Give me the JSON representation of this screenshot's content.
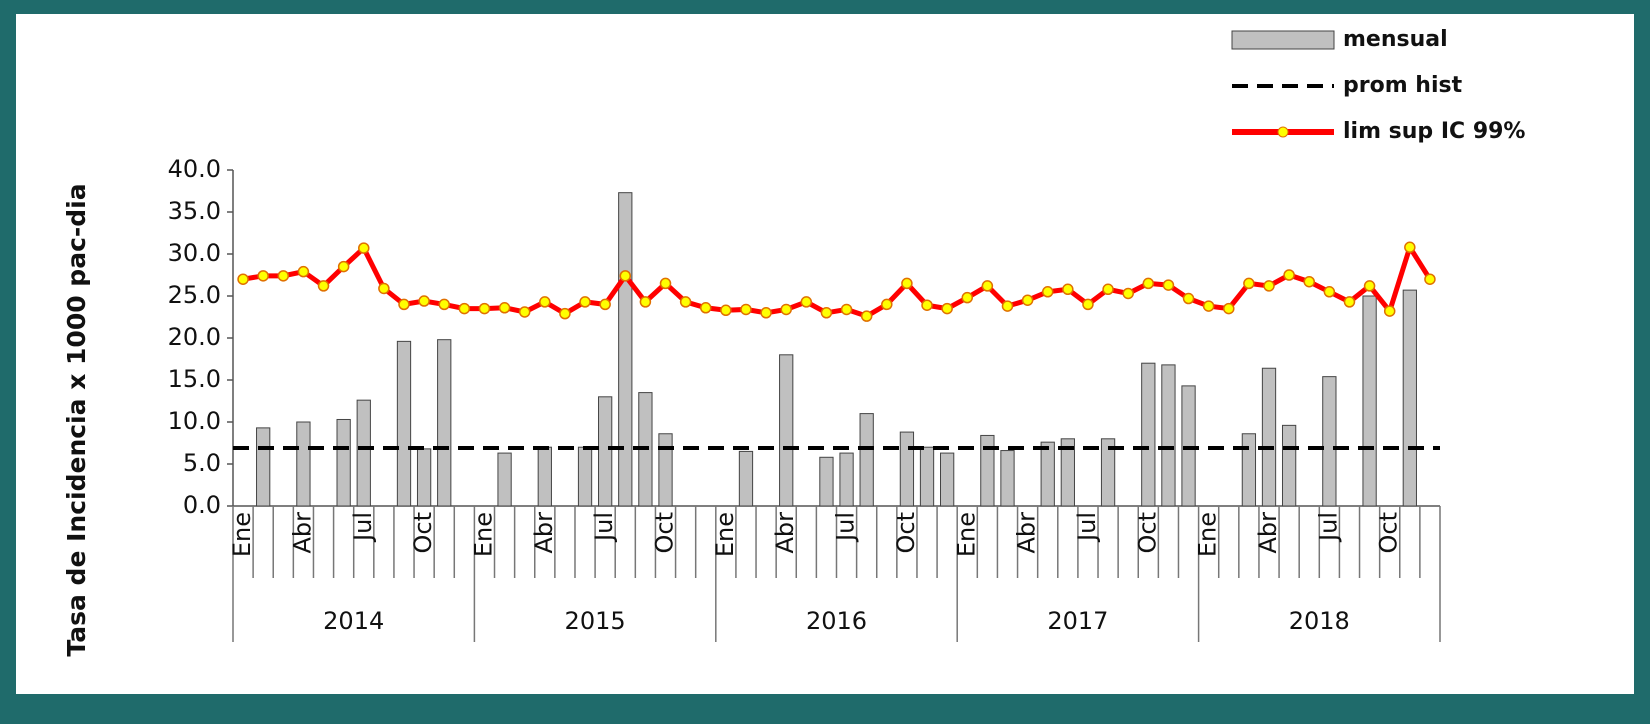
{
  "chart_data": {
    "type": "bar_line",
    "y_label": "Tasa de Incidencia x 1000 pac-dia",
    "categories": [
      "Ene",
      null,
      null,
      "Abr",
      null,
      null,
      "Jul",
      null,
      null,
      "Oct",
      null,
      null,
      "Ene",
      null,
      null,
      "Abr",
      null,
      null,
      "Jul",
      null,
      null,
      "Oct",
      null,
      null,
      "Ene",
      null,
      null,
      "Abr",
      null,
      null,
      "Jul",
      null,
      null,
      "Oct",
      null,
      null,
      "Ene",
      null,
      null,
      "Abr",
      null,
      null,
      "Jul",
      null,
      null,
      "Oct",
      null,
      null,
      "Ene",
      null,
      null,
      "Abr",
      null,
      null,
      "Jul",
      null,
      null,
      "Oct",
      null,
      null
    ],
    "years": [
      "2014",
      "2015",
      "2016",
      "2017",
      "2018"
    ],
    "series": [
      {
        "name": "mensual",
        "kind": "bar",
        "color": "#c0c0c0",
        "values": [
          0,
          9.3,
          0,
          10,
          0,
          10.3,
          12.6,
          0,
          19.6,
          6.8,
          19.8,
          0,
          0,
          6.3,
          0,
          7.0,
          0,
          7.0,
          13,
          37.3,
          13.5,
          8.6,
          0,
          0,
          0,
          6.5,
          0,
          18,
          0,
          5.8,
          6.3,
          11,
          0,
          8.8,
          7.0,
          6.3,
          0,
          8.4,
          6.6,
          0,
          7.6,
          8,
          0,
          8,
          0,
          17,
          16.8,
          14.3,
          0,
          0,
          8.6,
          16.4,
          9.6,
          0,
          15.4,
          0,
          25.0,
          0,
          25.7,
          0
        ]
      },
      {
        "name": "prom hist",
        "kind": "hline",
        "color": "#000000",
        "value": 6.9
      },
      {
        "name": "lim sup IC 99%",
        "kind": "line",
        "color": "#ff0000",
        "marker_color": "#ffff00",
        "values": [
          27.0,
          27.4,
          27.4,
          27.9,
          26.2,
          28.5,
          30.7,
          25.9,
          24.0,
          24.4,
          24.0,
          23.5,
          23.5,
          23.6,
          23.1,
          24.3,
          22.9,
          24.3,
          24.0,
          27.4,
          24.3,
          26.5,
          24.3,
          23.6,
          23.3,
          23.4,
          23.0,
          23.4,
          24.3,
          23.0,
          23.4,
          22.6,
          24.0,
          26.5,
          23.9,
          23.5,
          24.8,
          26.2,
          23.8,
          24.5,
          25.5,
          25.8,
          24.0,
          25.8,
          25.3,
          26.5,
          26.3,
          24.7,
          23.8,
          23.5,
          26.5,
          26.2,
          27.5,
          26.7,
          25.5,
          24.3,
          26.2,
          23.2,
          30.8,
          27.0
        ]
      }
    ],
    "ylim": [
      0,
      40
    ],
    "yticks": [
      {
        "value": 0,
        "label": "0.0"
      },
      {
        "value": 5,
        "label": "5.0"
      },
      {
        "value": 10,
        "label": "10.0"
      },
      {
        "value": 15,
        "label": "15.0"
      },
      {
        "value": 20,
        "label": "20.0"
      },
      {
        "value": 25,
        "label": "25.0"
      },
      {
        "value": 30,
        "label": "30.0"
      },
      {
        "value": 35,
        "label": "35.0"
      },
      {
        "value": 40,
        "label": "40.0"
      }
    ]
  }
}
